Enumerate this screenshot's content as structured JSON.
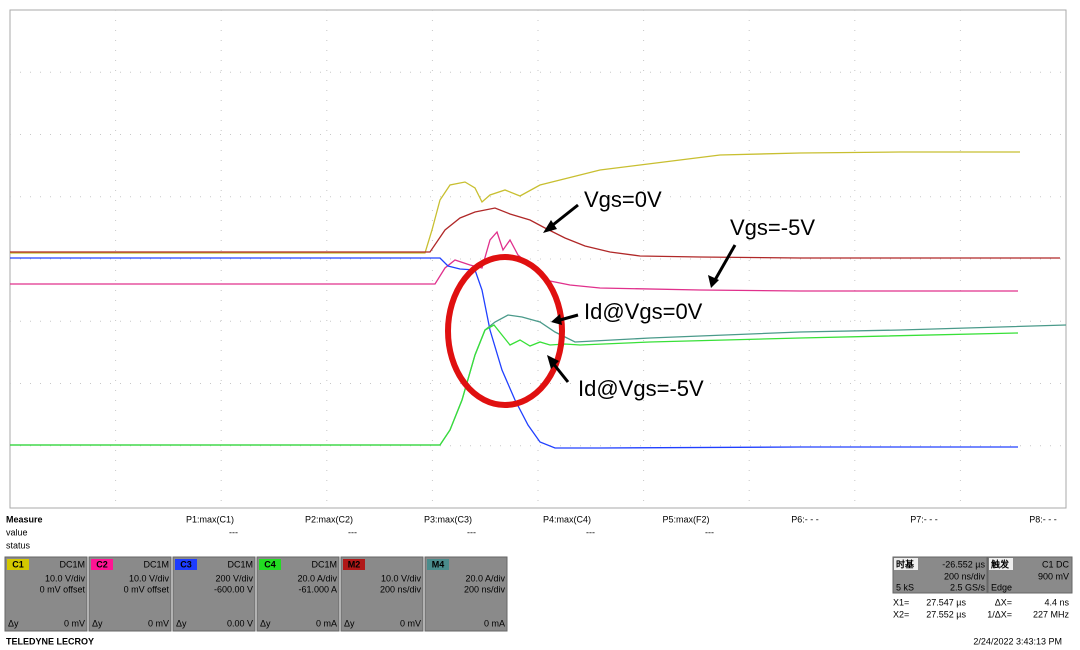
{
  "annotations": [
    "Vgs=0V",
    "Vgs=-5V",
    "Id@Vgs=0V",
    "Id@Vgs=-5V"
  ],
  "measure": {
    "title": "Measure",
    "row_labels": [
      "value",
      "status"
    ],
    "params": [
      {
        "name": "P1:max(C1)",
        "value": "---"
      },
      {
        "name": "P2:max(C2)",
        "value": "---"
      },
      {
        "name": "P3:max(C3)",
        "value": "---"
      },
      {
        "name": "P4:max(C4)",
        "value": "---"
      },
      {
        "name": "P5:max(F2)",
        "value": "---"
      },
      {
        "name": "P6:- - -"
      },
      {
        "name": "P7:- - -"
      },
      {
        "name": "P8:- - -"
      }
    ]
  },
  "channels": [
    {
      "label": "C1",
      "coupling": "DC1M",
      "scale": "10.0 V/div",
      "offset": "0 mV offset",
      "delta_label": "Δy",
      "delta": "0 mV",
      "color": "#d4c800"
    },
    {
      "label": "C2",
      "coupling": "DC1M",
      "scale": "10.0 V/div",
      "offset": "0 mV offset",
      "delta_label": "Δy",
      "delta": "0 mV",
      "color": "#ff1493"
    },
    {
      "label": "C3",
      "coupling": "DC1M",
      "scale": "200 V/div",
      "offset": "-600.00 V",
      "delta_label": "Δy",
      "delta": "0.00 V",
      "color": "#1e3cff"
    },
    {
      "label": "C4",
      "coupling": "DC1M",
      "scale": "20.0 A/div",
      "offset": "-61.000 A",
      "delta_label": "Δy",
      "delta": "0 mA",
      "color": "#22dd22"
    },
    {
      "label": "M2",
      "scale": "10.0 V/div",
      "offset": "200 ns/div",
      "delta_label": "Δy",
      "delta": "0 mV",
      "color": "#b01818"
    },
    {
      "label": "M4",
      "scale": "20.0 A/div",
      "offset": "200 ns/div",
      "delta": "0 mA",
      "color": "#4a8c8c"
    }
  ],
  "timebase": {
    "label": "时基",
    "delay": "-26.552 µs",
    "scale": "200 ns/div",
    "samples": "5 kS",
    "rate": "2.5 GS/s"
  },
  "trigger": {
    "label": "触发",
    "source": "C1 DC",
    "level": "900 mV",
    "mode": "Edge"
  },
  "cursors": [
    {
      "label": "X1=",
      "value": "27.547 µs",
      "d_label": "ΔX=",
      "d_value": "4.4 ns"
    },
    {
      "label": "X2=",
      "value": "27.552 µs",
      "d_label": "1/ΔX=",
      "d_value": "227 MHz"
    }
  ],
  "footer": {
    "brand": "TELEDYNE LECROY",
    "timestamp": "2/24/2022 3:43:13 PM"
  }
}
